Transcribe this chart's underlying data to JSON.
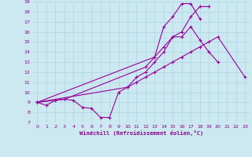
{
  "xlabel": "Windchill (Refroidissement éolien,°C)",
  "background_color": "#cce8f0",
  "grid_color": "#b0d8e8",
  "line_color": "#990099",
  "xlim": [
    -0.5,
    23.5
  ],
  "ylim": [
    7,
    19
  ],
  "xticks": [
    0,
    1,
    2,
    3,
    4,
    5,
    6,
    7,
    8,
    9,
    10,
    11,
    12,
    13,
    14,
    15,
    16,
    17,
    18,
    19,
    20,
    21,
    22,
    23
  ],
  "yticks": [
    7,
    8,
    9,
    10,
    11,
    12,
    13,
    14,
    15,
    16,
    17,
    18,
    19
  ],
  "series": [
    {
      "x": [
        0,
        1,
        2,
        3,
        4,
        5,
        6,
        7,
        8,
        9,
        10,
        11,
        12,
        13,
        14,
        15,
        16,
        17,
        18,
        19,
        20
      ],
      "y": [
        9.0,
        8.7,
        9.2,
        9.3,
        9.2,
        8.5,
        8.4,
        7.5,
        7.5,
        10.0,
        10.5,
        11.5,
        12.0,
        13.0,
        14.0,
        15.5,
        15.5,
        16.5,
        15.2,
        14.0,
        13.0
      ]
    },
    {
      "x": [
        0,
        3,
        12,
        13,
        14,
        15,
        16,
        17,
        18,
        19
      ],
      "y": [
        9.0,
        9.3,
        12.5,
        13.5,
        14.5,
        15.5,
        16.0,
        17.5,
        18.5,
        18.5
      ]
    },
    {
      "x": [
        0,
        13,
        14,
        15,
        16,
        17,
        18
      ],
      "y": [
        9.0,
        13.5,
        16.5,
        17.5,
        18.8,
        18.8,
        17.3
      ]
    },
    {
      "x": [
        0,
        10,
        11,
        12,
        13,
        14,
        15,
        16,
        17,
        18,
        19,
        20,
        23
      ],
      "y": [
        9.0,
        10.5,
        11.0,
        11.5,
        12.0,
        12.5,
        13.0,
        13.5,
        14.0,
        14.5,
        15.0,
        15.5,
        11.5
      ]
    }
  ]
}
